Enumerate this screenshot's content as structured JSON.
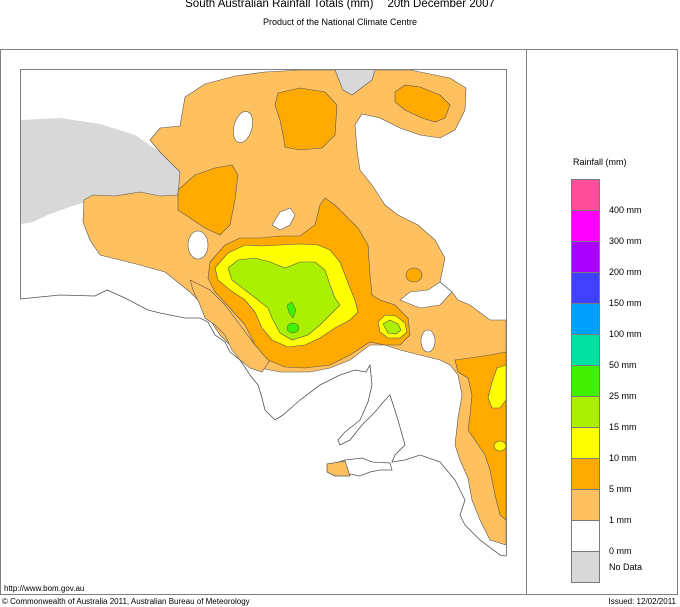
{
  "header": {
    "title": "South Australian Rainfall Totals (mm)",
    "date": "20th December 2007",
    "subtitle": "Product of the National Climate Centre"
  },
  "footer": {
    "url": "http://www.bom.gov.au",
    "copyright": "© Commonwealth of Australia 2011, Australian Bureau of Meteorology",
    "issued": "Issued: 12/02/2011"
  },
  "legend": {
    "title": "Rainfall (mm)",
    "swatches": [
      {
        "color": "#ff4f9a"
      },
      {
        "color": "#ff00ff"
      },
      {
        "color": "#aa00ff"
      },
      {
        "color": "#4040ff"
      },
      {
        "color": "#00a0ff"
      },
      {
        "color": "#00e0a0"
      },
      {
        "color": "#40f000"
      },
      {
        "color": "#aaf000"
      },
      {
        "color": "#ffff00"
      },
      {
        "color": "#ffaa00"
      },
      {
        "color": "#ffc060"
      },
      {
        "color": "#ffffff"
      },
      {
        "color": "#d8d8d8"
      }
    ],
    "labels": [
      "400 mm",
      "300 mm",
      "200 mm",
      "150 mm",
      "100 mm",
      "50 mm",
      "25 mm",
      "15 mm",
      "10 mm",
      "5 mm",
      "1 mm",
      "0 mm",
      "No Data"
    ]
  },
  "map": {
    "region": "South Australia",
    "colors": {
      "no_data": "#d8d8d8",
      "r1_5": "#ffc060",
      "r5_10": "#ffaa00",
      "r10_15": "#ffff00",
      "r15_25": "#aaf000",
      "r25_50": "#40f000",
      "coast": "#555555"
    }
  }
}
